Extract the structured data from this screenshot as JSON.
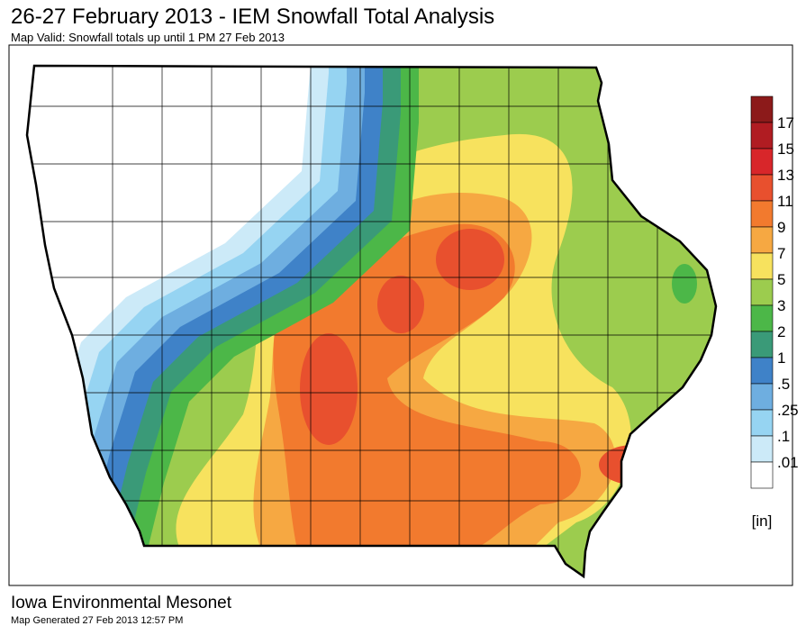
{
  "header": {
    "title": "26-27 February 2013 - IEM Snowfall Total Analysis",
    "subtitle": "Map Valid: Snowfall totals up until 1 PM 27 Feb 2013"
  },
  "legend": {
    "labels": [
      "17",
      "15",
      "13",
      "11",
      "9",
      "7",
      "5",
      "3",
      "2",
      "1",
      ".5",
      ".25",
      ".1",
      ".01"
    ],
    "colors": [
      "#8c1a1a",
      "#b01c22",
      "#d8262a",
      "#e8502e",
      "#f27a2e",
      "#f6a842",
      "#f7e25e",
      "#9ccc4e",
      "#4cb748",
      "#3a9a78",
      "#3f82c8",
      "#6eaee0",
      "#96d4f2",
      "#cceaf8",
      "#ffffff"
    ],
    "unit": "[in]"
  },
  "footer": {
    "organization": "Iowa Environmental Mesonet",
    "generated": "Map Generated 27 Feb 2013 12:57 PM"
  }
}
